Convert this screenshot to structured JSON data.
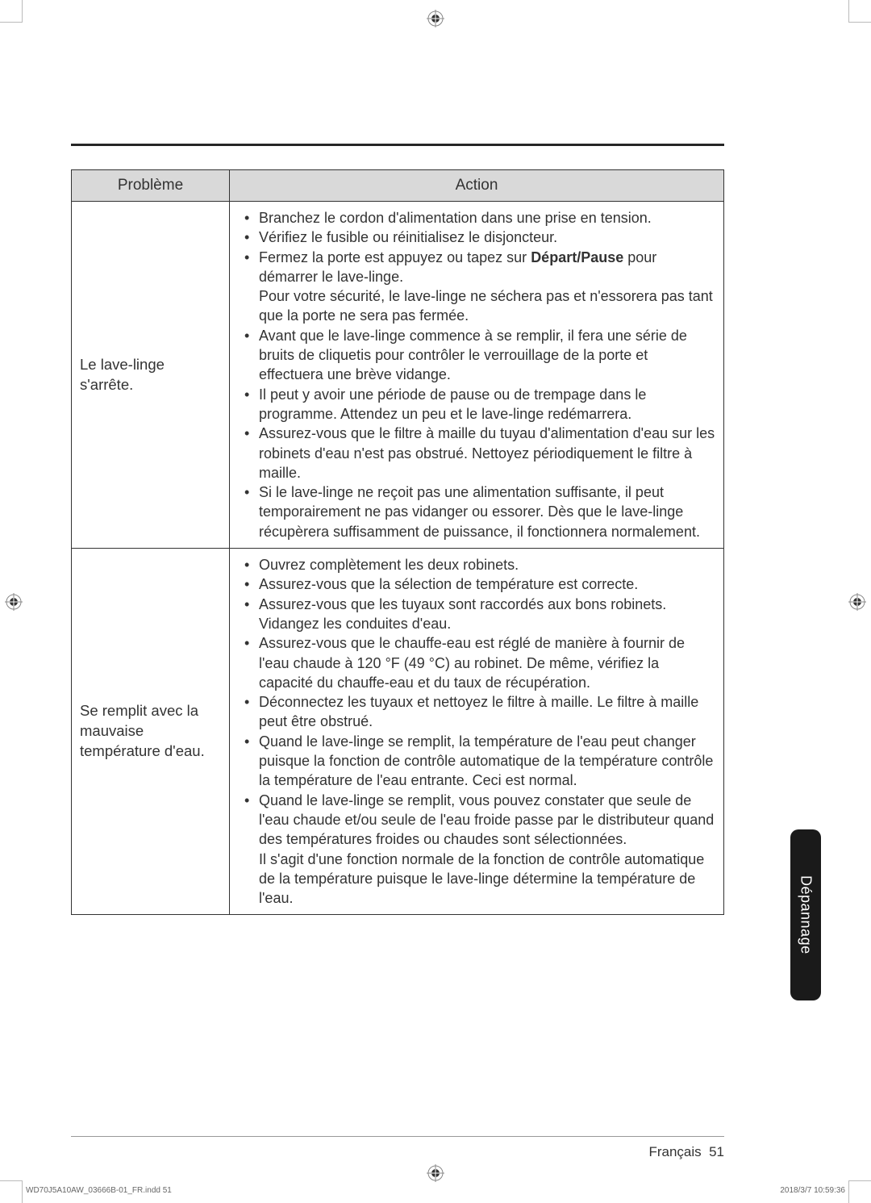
{
  "cropmarks": {
    "color": "#bbbbbb"
  },
  "table": {
    "headers": {
      "problem": "Problème",
      "action": "Action"
    },
    "rows": [
      {
        "problem": "Le lave-linge s'arrête.",
        "actions": [
          {
            "text": "Branchez le cordon d'alimentation dans une prise en tension."
          },
          {
            "text": "Vérifiez le fusible ou réinitialisez le disjoncteur."
          },
          {
            "pre": "Fermez la porte est appuyez ou tapez sur ",
            "bold": "Départ/Pause",
            "post": " pour démarrer le lave-linge.",
            "extra": "Pour votre sécurité, le lave-linge ne séchera pas et n'essorera pas tant que la porte ne sera pas fermée."
          },
          {
            "text": "Avant que le lave-linge commence à se remplir, il fera une série de bruits de cliquetis pour contrôler le verrouillage de la porte et effectuera une brève vidange."
          },
          {
            "text": "Il peut y avoir une période de pause ou de trempage dans le programme. Attendez un peu et le lave-linge redémarrera."
          },
          {
            "text": "Assurez-vous que le filtre à maille du tuyau d'alimentation d'eau sur les robinets d'eau n'est pas obstrué. Nettoyez périodiquement le filtre à maille."
          },
          {
            "text": "Si le lave-linge ne reçoit pas une alimentation suffisante, il peut temporairement ne pas vidanger ou essorer. Dès que le lave-linge récupèrera suffisamment de puissance, il fonctionnera normalement."
          }
        ]
      },
      {
        "problem": "Se remplit avec la mauvaise température d'eau.",
        "actions": [
          {
            "text": "Ouvrez complètement les deux robinets."
          },
          {
            "text": "Assurez-vous que la sélection de température est correcte."
          },
          {
            "text": "Assurez-vous que les tuyaux sont raccordés aux bons robinets. Vidangez les conduites d'eau."
          },
          {
            "text": "Assurez-vous que le chauffe-eau est réglé de manière à fournir de l'eau chaude à 120 °F (49 °C) au robinet. De même, vérifiez la capacité du chauffe-eau et du taux de récupération."
          },
          {
            "text": "Déconnectez les tuyaux et nettoyez le filtre à maille. Le filtre à maille peut être obstrué."
          },
          {
            "text": "Quand le lave-linge se remplit, la température de l'eau peut changer puisque la fonction de contrôle automatique de la température contrôle la température de l'eau entrante. Ceci est normal."
          },
          {
            "text": "Quand le lave-linge se remplit, vous pouvez constater que seule de l'eau chaude et/ou seule de l'eau froide passe par le distributeur quand des températures froides ou chaudes sont sélectionnées.",
            "extra": "Il s'agit d'une fonction normale de la fonction de contrôle automatique de la température puisque le lave-linge détermine la température de l'eau."
          }
        ]
      }
    ]
  },
  "side_tab": "Dépannage",
  "footer": {
    "lang": "Français",
    "page": "51"
  },
  "meta": {
    "indd": "WD70J5A10AW_03666B-01_FR.indd   51",
    "timestamp": "2018/3/7   10:59:36"
  }
}
